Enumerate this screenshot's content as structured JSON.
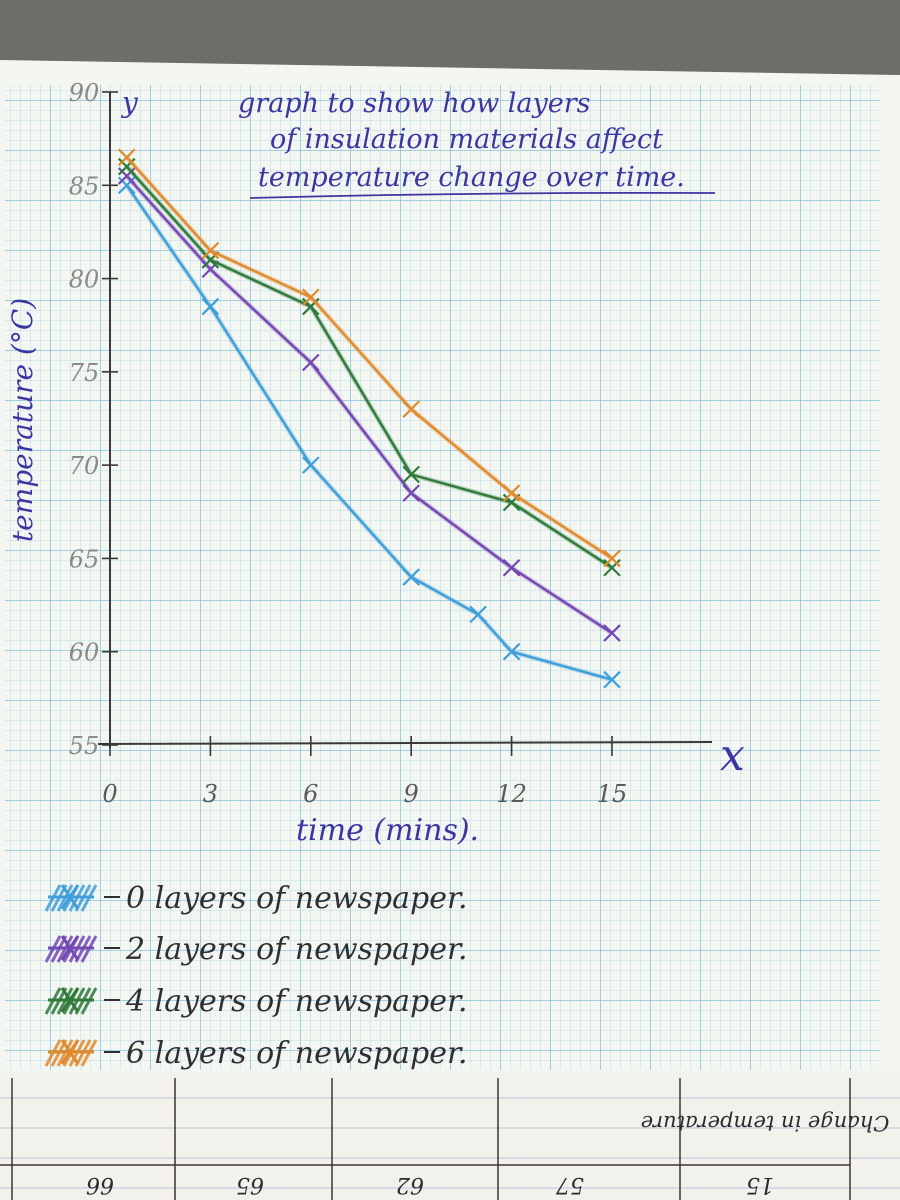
{
  "chart_data": {
    "type": "line",
    "title": "graph to show how layers of insulation materials affect temperature change over time.",
    "title_lines": [
      "graph to show how layers",
      "of insulation materials affect",
      "temperature change over time."
    ],
    "xlabel": "time (mins).",
    "ylabel": "temperature (°C)",
    "x_axis_letter": "x",
    "y_axis_letter": "y",
    "xlim": [
      0,
      15
    ],
    "ylim": [
      55,
      90
    ],
    "x_ticks": [
      "0",
      "3",
      "6",
      "9",
      "12",
      "15"
    ],
    "x_tick_values": [
      0,
      3,
      6,
      9,
      12,
      15
    ],
    "y_ticks": [
      "55",
      "60",
      "65",
      "70",
      "75",
      "80",
      "85",
      "90"
    ],
    "y_tick_values": [
      55,
      60,
      65,
      70,
      75,
      80,
      85,
      90
    ],
    "grid": true,
    "legend_position": "bottom-left",
    "series": [
      {
        "name": "0 layers of newspaper.",
        "color": "#3f9fd8",
        "points": [
          [
            0.5,
            85
          ],
          [
            3,
            78.5
          ],
          [
            6,
            70
          ],
          [
            9,
            64
          ],
          [
            11,
            62
          ],
          [
            12,
            60
          ],
          [
            15,
            58.5
          ]
        ]
      },
      {
        "name": "2 layers of newspaper.",
        "color": "#7447b3",
        "points": [
          [
            0.5,
            85.5
          ],
          [
            3,
            80.5
          ],
          [
            6,
            75.5
          ],
          [
            9,
            68.5
          ],
          [
            12,
            64.5
          ],
          [
            15,
            61
          ]
        ]
      },
      {
        "name": "4 layers of newspaper.",
        "color": "#2f7a3a",
        "points": [
          [
            0.5,
            86
          ],
          [
            3,
            81
          ],
          [
            6,
            78.5
          ],
          [
            9,
            69.5
          ],
          [
            12,
            68
          ],
          [
            15,
            64.5
          ]
        ]
      },
      {
        "name": "6 layers of newspaper.",
        "color": "#e08a2c",
        "points": [
          [
            0.5,
            86.5
          ],
          [
            3,
            81.5
          ],
          [
            6,
            79
          ],
          [
            9,
            73
          ],
          [
            12,
            68.5
          ],
          [
            15,
            65
          ]
        ]
      }
    ]
  },
  "bottom_table": {
    "header_text": "Change in temperature",
    "values": [
      "66",
      "65",
      "62",
      "57",
      "15"
    ]
  }
}
